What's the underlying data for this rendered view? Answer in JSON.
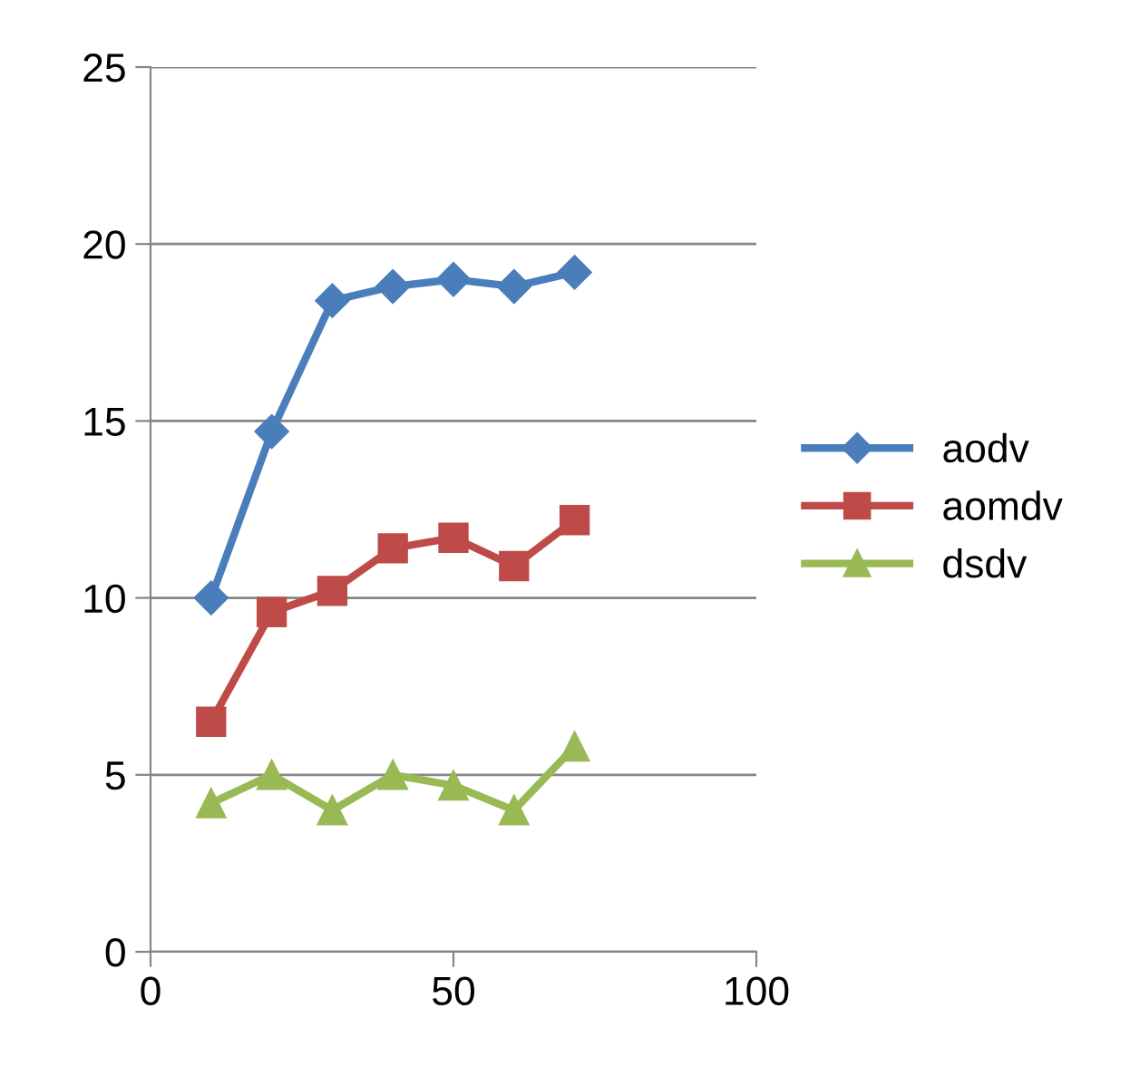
{
  "chart_data": {
    "type": "line",
    "x": [
      10,
      20,
      30,
      40,
      50,
      60,
      70
    ],
    "series": [
      {
        "name": "aodv",
        "color": "#4a7ebb",
        "marker": "diamond",
        "values": [
          10.0,
          14.7,
          18.4,
          18.8,
          19.0,
          18.8,
          19.2
        ]
      },
      {
        "name": "aomdv",
        "color": "#be4b48",
        "marker": "square",
        "values": [
          6.5,
          9.6,
          10.2,
          11.4,
          11.7,
          10.9,
          12.2
        ]
      },
      {
        "name": "dsdv",
        "color": "#98b954",
        "marker": "triangle",
        "values": [
          4.2,
          5.0,
          4.0,
          5.0,
          4.7,
          4.0,
          5.8
        ]
      }
    ],
    "xlim": [
      0,
      100
    ],
    "xticks": [
      0,
      50,
      100
    ],
    "ylim": [
      0,
      25
    ],
    "yticks": [
      0,
      5,
      10,
      15,
      20,
      25
    ],
    "grid": "y",
    "legend": "right",
    "line_style": "solid"
  }
}
